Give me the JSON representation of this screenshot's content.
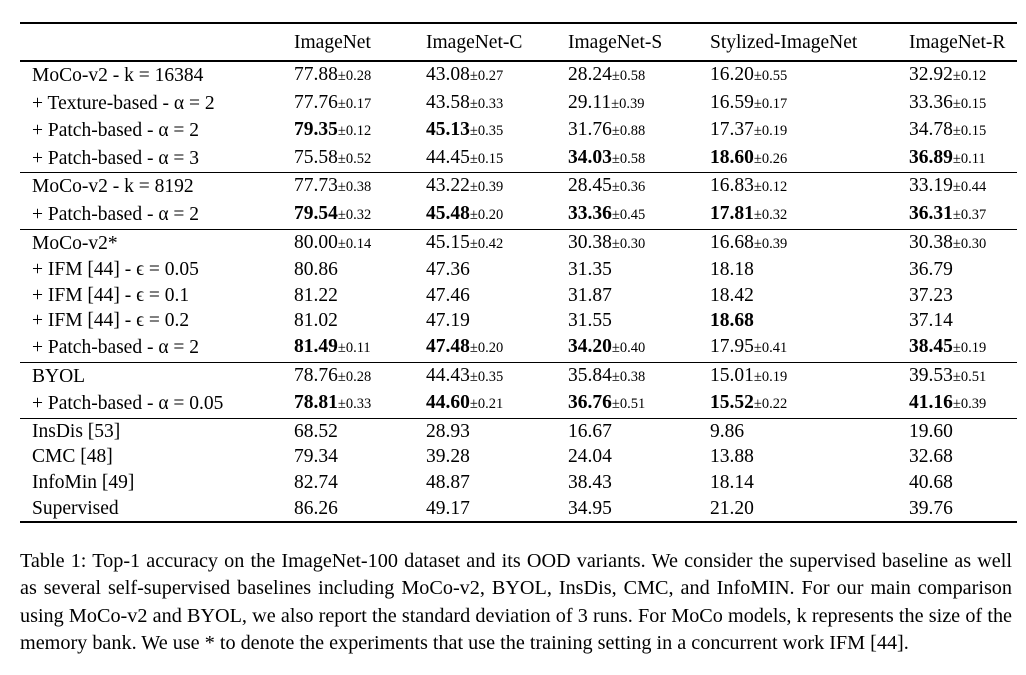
{
  "columns": [
    "ImageNet",
    "ImageNet-C",
    "ImageNet-S",
    "Stylized-ImageNet",
    "ImageNet-R"
  ],
  "groups": [
    {
      "rows": [
        {
          "label": "MoCo-v2 - k = 16384",
          "cells": [
            {
              "v": "77.88",
              "s": "±0.28",
              "b": false
            },
            {
              "v": "43.08",
              "s": "±0.27",
              "b": false
            },
            {
              "v": "28.24",
              "s": "±0.58",
              "b": false
            },
            {
              "v": "16.20",
              "s": "±0.55",
              "b": false
            },
            {
              "v": "32.92",
              "s": "±0.12",
              "b": false
            }
          ]
        },
        {
          "label": "+ Texture-based - α = 2",
          "cells": [
            {
              "v": "77.76",
              "s": "±0.17",
              "b": false
            },
            {
              "v": "43.58",
              "s": "±0.33",
              "b": false
            },
            {
              "v": "29.11",
              "s": "±0.39",
              "b": false
            },
            {
              "v": "16.59",
              "s": "±0.17",
              "b": false
            },
            {
              "v": "33.36",
              "s": "±0.15",
              "b": false
            }
          ]
        },
        {
          "label": "+ Patch-based - α = 2",
          "cells": [
            {
              "v": "79.35",
              "s": "±0.12",
              "b": true
            },
            {
              "v": "45.13",
              "s": "±0.35",
              "b": true
            },
            {
              "v": "31.76",
              "s": "±0.88",
              "b": false
            },
            {
              "v": "17.37",
              "s": "±0.19",
              "b": false
            },
            {
              "v": "34.78",
              "s": "±0.15",
              "b": false
            }
          ]
        },
        {
          "label": "+ Patch-based - α = 3",
          "cells": [
            {
              "v": "75.58",
              "s": "±0.52",
              "b": false
            },
            {
              "v": "44.45",
              "s": "±0.15",
              "b": false
            },
            {
              "v": "34.03",
              "s": "±0.58",
              "b": true
            },
            {
              "v": "18.60",
              "s": "±0.26",
              "b": true
            },
            {
              "v": "36.89",
              "s": "±0.11",
              "b": true
            }
          ]
        }
      ]
    },
    {
      "rows": [
        {
          "label": "MoCo-v2 - k = 8192",
          "cells": [
            {
              "v": "77.73",
              "s": "±0.38",
              "b": false
            },
            {
              "v": "43.22",
              "s": "±0.39",
              "b": false
            },
            {
              "v": "28.45",
              "s": "±0.36",
              "b": false
            },
            {
              "v": "16.83",
              "s": "±0.12",
              "b": false
            },
            {
              "v": "33.19",
              "s": "±0.44",
              "b": false
            }
          ]
        },
        {
          "label": "+ Patch-based - α = 2",
          "cells": [
            {
              "v": "79.54",
              "s": "±0.32",
              "b": true
            },
            {
              "v": "45.48",
              "s": "±0.20",
              "b": true
            },
            {
              "v": "33.36",
              "s": "±0.45",
              "b": true
            },
            {
              "v": "17.81",
              "s": "±0.32",
              "b": true
            },
            {
              "v": "36.31",
              "s": "±0.37",
              "b": true
            }
          ]
        }
      ]
    },
    {
      "rows": [
        {
          "label": "MoCo-v2*",
          "cells": [
            {
              "v": "80.00",
              "s": "±0.14",
              "b": false
            },
            {
              "v": "45.15",
              "s": "±0.42",
              "b": false
            },
            {
              "v": "30.38",
              "s": "±0.30",
              "b": false
            },
            {
              "v": "16.68",
              "s": "±0.39",
              "b": false
            },
            {
              "v": "30.38",
              "s": "±0.30",
              "b": false
            }
          ]
        },
        {
          "label": "+ IFM [44] - ϵ = 0.05",
          "cells": [
            {
              "v": "80.86",
              "s": "",
              "b": false
            },
            {
              "v": "47.36",
              "s": "",
              "b": false
            },
            {
              "v": "31.35",
              "s": "",
              "b": false
            },
            {
              "v": "18.18",
              "s": "",
              "b": false
            },
            {
              "v": "36.79",
              "s": "",
              "b": false
            }
          ]
        },
        {
          "label": "+ IFM [44] - ϵ = 0.1",
          "cells": [
            {
              "v": "81.22",
              "s": "",
              "b": false
            },
            {
              "v": "47.46",
              "s": "",
              "b": false
            },
            {
              "v": "31.87",
              "s": "",
              "b": false
            },
            {
              "v": "18.42",
              "s": "",
              "b": false
            },
            {
              "v": "37.23",
              "s": "",
              "b": false
            }
          ]
        },
        {
          "label": "+ IFM [44] - ϵ = 0.2",
          "cells": [
            {
              "v": "81.02",
              "s": "",
              "b": false
            },
            {
              "v": "47.19",
              "s": "",
              "b": false
            },
            {
              "v": "31.55",
              "s": "",
              "b": false
            },
            {
              "v": "18.68",
              "s": "",
              "b": true
            },
            {
              "v": "37.14",
              "s": "",
              "b": false
            }
          ]
        },
        {
          "label": "+ Patch-based - α = 2",
          "cells": [
            {
              "v": "81.49",
              "s": "±0.11",
              "b": true
            },
            {
              "v": "47.48",
              "s": "±0.20",
              "b": true
            },
            {
              "v": "34.20",
              "s": "±0.40",
              "b": true
            },
            {
              "v": "17.95",
              "s": "±0.41",
              "b": false
            },
            {
              "v": "38.45",
              "s": "±0.19",
              "b": true
            }
          ]
        }
      ]
    },
    {
      "rows": [
        {
          "label": "BYOL",
          "cells": [
            {
              "v": "78.76",
              "s": "±0.28",
              "b": false
            },
            {
              "v": "44.43",
              "s": "±0.35",
              "b": false
            },
            {
              "v": "35.84",
              "s": "±0.38",
              "b": false
            },
            {
              "v": "15.01",
              "s": "±0.19",
              "b": false
            },
            {
              "v": "39.53",
              "s": "±0.51",
              "b": false
            }
          ]
        },
        {
          "label": "+ Patch-based - α = 0.05",
          "cells": [
            {
              "v": "78.81",
              "s": "±0.33",
              "b": true
            },
            {
              "v": "44.60",
              "s": "±0.21",
              "b": true
            },
            {
              "v": "36.76",
              "s": "±0.51",
              "b": true
            },
            {
              "v": "15.52",
              "s": "±0.22",
              "b": true
            },
            {
              "v": "41.16",
              "s": "±0.39",
              "b": true
            }
          ]
        }
      ]
    },
    {
      "rows": [
        {
          "label": "InsDis [53]",
          "cells": [
            {
              "v": "68.52",
              "s": "",
              "b": false
            },
            {
              "v": "28.93",
              "s": "",
              "b": false
            },
            {
              "v": "16.67",
              "s": "",
              "b": false
            },
            {
              "v": "9.86",
              "s": "",
              "b": false
            },
            {
              "v": "19.60",
              "s": "",
              "b": false
            }
          ]
        },
        {
          "label": "CMC [48]",
          "cells": [
            {
              "v": "79.34",
              "s": "",
              "b": false
            },
            {
              "v": "39.28",
              "s": "",
              "b": false
            },
            {
              "v": "24.04",
              "s": "",
              "b": false
            },
            {
              "v": "13.88",
              "s": "",
              "b": false
            },
            {
              "v": "32.68",
              "s": "",
              "b": false
            }
          ]
        },
        {
          "label": "InfoMin [49]",
          "cells": [
            {
              "v": "82.74",
              "s": "",
              "b": false
            },
            {
              "v": "48.87",
              "s": "",
              "b": false
            },
            {
              "v": "38.43",
              "s": "",
              "b": false
            },
            {
              "v": "18.14",
              "s": "",
              "b": false
            },
            {
              "v": "40.68",
              "s": "",
              "b": false
            }
          ]
        },
        {
          "label": "Supervised",
          "cells": [
            {
              "v": "86.26",
              "s": "",
              "b": false
            },
            {
              "v": "49.17",
              "s": "",
              "b": false
            },
            {
              "v": "34.95",
              "s": "",
              "b": false
            },
            {
              "v": "21.20",
              "s": "",
              "b": false
            },
            {
              "v": "39.76",
              "s": "",
              "b": false
            }
          ]
        }
      ]
    }
  ],
  "caption": "Table 1: Top-1 accuracy on the ImageNet-100 dataset and its OOD variants. We consider the supervised baseline as well as several self-supervised baselines including MoCo-v2, BYOL, InsDis, CMC, and InfoMIN. For our main comparison using MoCo-v2 and BYOL, we also report the standard deviation of 3 runs. For MoCo models, k represents the size of the memory bank. We use * to denote the experiments that use the training setting in a concurrent work IFM [44]."
}
